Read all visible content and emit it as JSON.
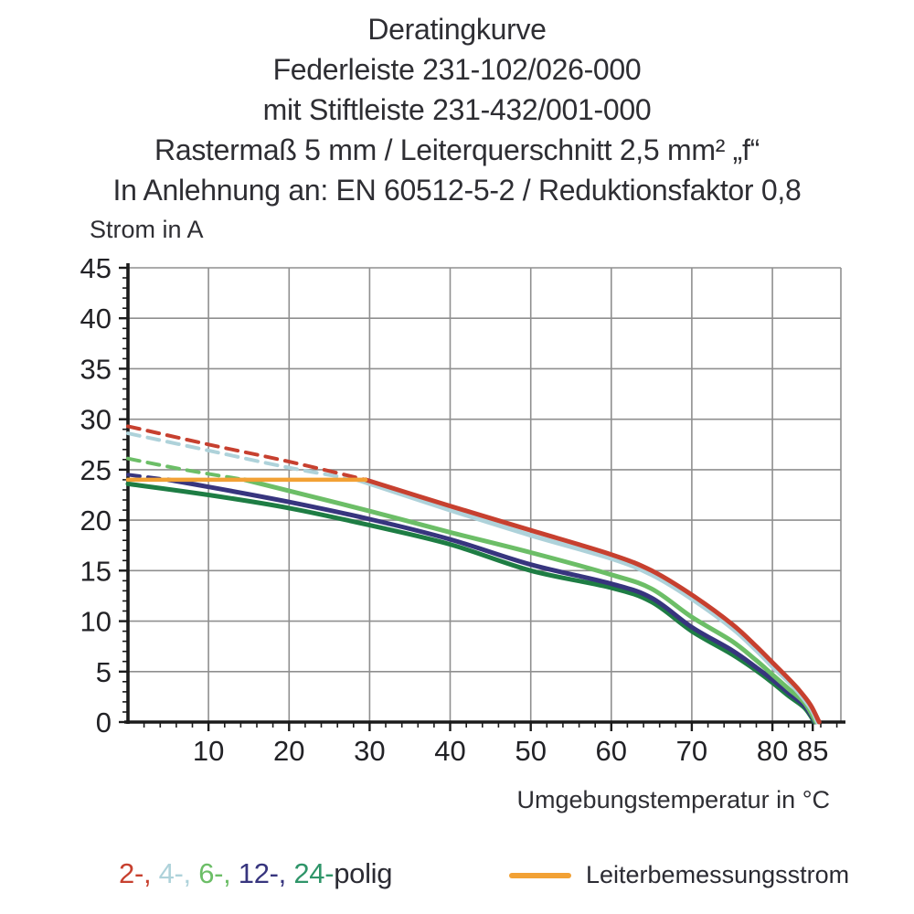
{
  "title": {
    "lines": [
      "Deratingkurve",
      "Federleiste 231-102/026-000",
      "mit Stiftleiste 231-432/001-000",
      "Rastermaß 5 mm / Leiterquerschnitt 2,5 mm² „f“",
      "In Anlehnung an: EN 60512-5-2 / Reduktionsfaktor 0,8"
    ]
  },
  "chart_data": {
    "type": "line",
    "ylabel": "Strom in A",
    "xlabel": "Umgebungstemperatur in °C",
    "xlim": [
      0,
      88.5
    ],
    "ylim": [
      0,
      45
    ],
    "x_ticks": [
      10,
      20,
      30,
      40,
      50,
      60,
      70,
      80,
      85
    ],
    "x_gridlines": [
      10,
      20,
      30,
      40,
      50,
      60,
      70,
      80
    ],
    "y_ticks": [
      0,
      5,
      10,
      15,
      20,
      25,
      30,
      35,
      40,
      45
    ],
    "x_minor_step": 2,
    "y_minor_step": 1,
    "grid_color": "#8f8f8f",
    "axis_color": "#1b1b1b",
    "legend_position": "bottom",
    "series": [
      {
        "name": "24-polig",
        "color": "#1e7d44",
        "width": 5,
        "solid": [
          [
            0,
            23.6
          ],
          [
            10,
            22.5
          ],
          [
            20,
            21.2
          ],
          [
            30,
            19.5
          ],
          [
            40,
            17.6
          ],
          [
            50,
            15.0
          ],
          [
            60,
            13.3
          ],
          [
            65,
            11.9
          ],
          [
            70,
            9.0
          ],
          [
            75,
            6.7
          ],
          [
            78,
            5.1
          ],
          [
            80,
            3.9
          ],
          [
            82,
            2.6
          ],
          [
            84,
            1.4
          ],
          [
            85.2,
            0
          ]
        ]
      },
      {
        "name": "12-polig",
        "color": "#37357e",
        "width": 5,
        "dashed": [
          [
            0,
            24.5
          ],
          [
            5,
            24
          ]
        ],
        "solid": [
          [
            5,
            24
          ],
          [
            10,
            23.3
          ],
          [
            20,
            21.8
          ],
          [
            30,
            20.1
          ],
          [
            40,
            18.1
          ],
          [
            50,
            15.6
          ],
          [
            60,
            13.7
          ],
          [
            65,
            12.3
          ],
          [
            70,
            9.4
          ],
          [
            75,
            7.1
          ],
          [
            78,
            5.4
          ],
          [
            80,
            4.2
          ],
          [
            82,
            2.9
          ],
          [
            84,
            1.6
          ],
          [
            85.3,
            0
          ]
        ]
      },
      {
        "name": "6-polig",
        "color": "#6cbe67",
        "width": 5,
        "dashed": [
          [
            0,
            26.1
          ],
          [
            7,
            25.0
          ],
          [
            14.5,
            24
          ]
        ],
        "solid": [
          [
            14.5,
            24
          ],
          [
            20,
            22.9
          ],
          [
            30,
            20.9
          ],
          [
            40,
            18.8
          ],
          [
            50,
            16.8
          ],
          [
            60,
            14.6
          ],
          [
            65,
            13.2
          ],
          [
            70,
            10.4
          ],
          [
            75,
            8.0
          ],
          [
            78,
            6.1
          ],
          [
            80,
            4.7
          ],
          [
            82,
            3.3
          ],
          [
            84,
            1.9
          ],
          [
            85.4,
            0
          ]
        ]
      },
      {
        "name": "4-polig",
        "color": "#aed2da",
        "width": 5,
        "dashed": [
          [
            0,
            28.6
          ],
          [
            10,
            26.9
          ],
          [
            20,
            25.2
          ],
          [
            28.5,
            24
          ]
        ],
        "solid": [
          [
            28.5,
            24
          ],
          [
            40,
            21.0
          ],
          [
            50,
            18.5
          ],
          [
            60,
            16.2
          ],
          [
            65,
            14.6
          ],
          [
            70,
            12.2
          ],
          [
            75,
            9.3
          ],
          [
            78,
            7.1
          ],
          [
            80,
            5.5
          ],
          [
            82,
            4.0
          ],
          [
            83.5,
            2.7
          ],
          [
            84.8,
            1.3
          ],
          [
            85.6,
            0
          ]
        ]
      },
      {
        "name": "2-polig",
        "color": "#c7402f",
        "width": 5,
        "dashed": [
          [
            0,
            29.3
          ],
          [
            10,
            27.5
          ],
          [
            20,
            25.8
          ],
          [
            29.5,
            24
          ]
        ],
        "solid": [
          [
            29.5,
            24
          ],
          [
            40,
            21.4
          ],
          [
            50,
            19.0
          ],
          [
            60,
            16.6
          ],
          [
            65,
            15.0
          ],
          [
            70,
            12.6
          ],
          [
            75,
            9.7
          ],
          [
            78,
            7.5
          ],
          [
            80,
            5.9
          ],
          [
            82,
            4.3
          ],
          [
            83.5,
            3.0
          ],
          [
            84.8,
            1.6
          ],
          [
            85.8,
            0
          ]
        ]
      },
      {
        "name": "Leiterbemessungsstrom",
        "color": "#f2a135",
        "width": 4.5,
        "solid": [
          [
            0,
            24
          ],
          [
            29.5,
            24
          ]
        ]
      }
    ]
  },
  "legend": {
    "poles_parts": [
      {
        "text": "2-,",
        "color": "#c7402f"
      },
      {
        "text": " 4-,",
        "color": "#aed2da"
      },
      {
        "text": " 6-,",
        "color": "#6cbe67"
      },
      {
        "text": " 12-,",
        "color": "#37357e"
      },
      {
        "text": " 24-",
        "color": "#2f9569"
      },
      {
        "text": "polig",
        "color": "#2b2b33"
      }
    ],
    "rated_line_label": "Leiterbemessungsstrom",
    "rated_line_color": "#f2a135"
  }
}
